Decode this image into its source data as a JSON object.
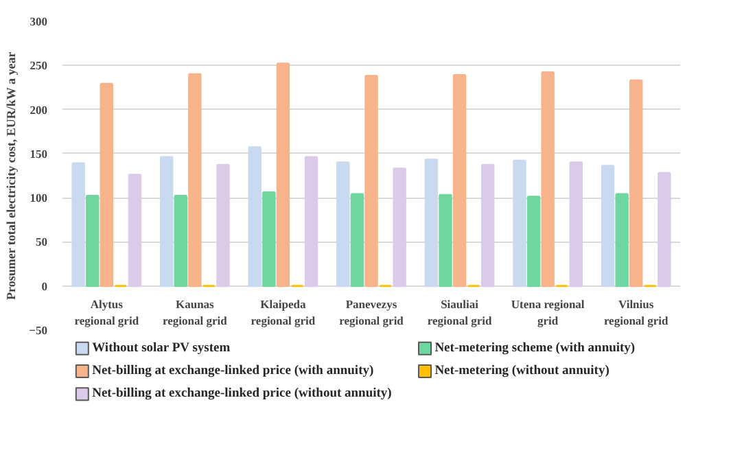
{
  "chart_data": {
    "type": "bar",
    "ylabel": "Prosumer total electricity cost, EUR/kW a year",
    "categories": [
      "Alytus regional grid",
      "Kaunas regional grid",
      "Klaipeda regional grid",
      "Panevezys regional grid",
      "Siauliai regional grid",
      "Utena regional grid",
      "Vilnius regional grid"
    ],
    "series": [
      {
        "name": "Without solar PV system",
        "color": "#c9d9f0",
        "values": [
          139,
          146,
          157,
          140,
          143,
          142,
          136
        ]
      },
      {
        "name": "Net-metering scheme (with annuity)",
        "color": "#70d6a0",
        "values": [
          102,
          102,
          106,
          104,
          103,
          101,
          104
        ]
      },
      {
        "name": "Net-billing at exchange-linked price (with annuity)",
        "color": "#f7b48a",
        "values": [
          229,
          240,
          252,
          238,
          239,
          242,
          233
        ]
      },
      {
        "name": "Net-metering (without annuity)",
        "color": "#ffc000",
        "values": [
          0,
          0,
          0,
          0,
          0,
          0,
          0
        ]
      },
      {
        "name": "Net-billing at exchange-linked price (without annuity)",
        "color": "#dccbe8",
        "values": [
          126,
          137,
          146,
          133,
          137,
          140,
          128
        ]
      }
    ],
    "ylim": [
      -50,
      300
    ],
    "yticks": [
      -50,
      0,
      50,
      100,
      150,
      200,
      250,
      300
    ],
    "grid": "y",
    "legend": "bottom"
  }
}
